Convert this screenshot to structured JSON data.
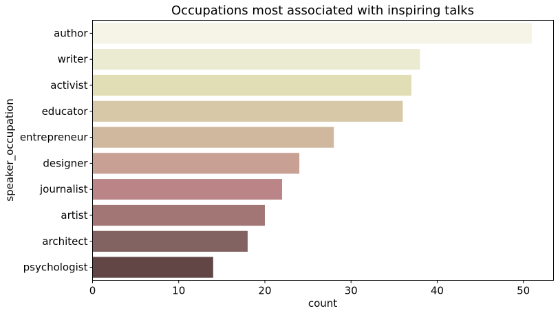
{
  "chart_data": {
    "type": "bar",
    "orientation": "horizontal",
    "title": "Occupations most associated with inspiring talks",
    "xlabel": "count",
    "ylabel": "speaker_occupation",
    "categories": [
      "author",
      "writer",
      "activist",
      "educator",
      "entrepreneur",
      "designer",
      "journalist",
      "artist",
      "architect",
      "psychologist"
    ],
    "values": [
      51,
      38,
      37,
      36,
      28,
      24,
      22,
      20,
      18,
      14
    ],
    "colors": [
      "#f5f4e7",
      "#ebebd1",
      "#e1ddb5",
      "#d7c9a8",
      "#cfb89e",
      "#c8a194",
      "#bb8587",
      "#a27675",
      "#836262",
      "#624646"
    ],
    "xlim": [
      0,
      53.5
    ],
    "xticks": [
      0,
      10,
      20,
      30,
      40,
      50
    ],
    "grid": false,
    "legend": "none"
  }
}
